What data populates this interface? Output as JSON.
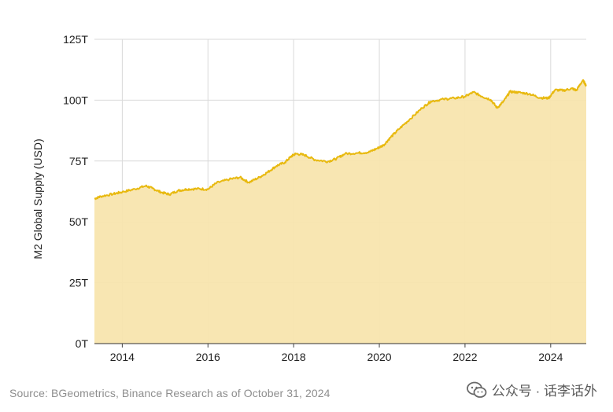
{
  "chart_data": {
    "type": "area",
    "ylabel": "M2 Global Supply (USD)",
    "xlabel": "",
    "xlim": [
      2013.35,
      2024.83
    ],
    "ylim": [
      0,
      125
    ],
    "x_ticks": [
      2014,
      2016,
      2018,
      2020,
      2022,
      2024
    ],
    "x_tick_labels": [
      "2014",
      "2016",
      "2018",
      "2020",
      "2022",
      "2024"
    ],
    "y_ticks": [
      0,
      25,
      50,
      75,
      100,
      125
    ],
    "y_tick_labels": [
      "0T",
      "25T",
      "50T",
      "75T",
      "100T",
      "125T"
    ],
    "grid": true,
    "line_color": "#e8b90f",
    "fill_color": "#f8e5ae",
    "series": [
      {
        "x": [
          2013.35,
          2013.5,
          2013.8,
          2014.0,
          2014.3,
          2014.55,
          2014.7,
          2014.9,
          2015.1,
          2015.3,
          2015.5,
          2015.75,
          2016.0,
          2016.2,
          2016.5,
          2016.75,
          2016.95,
          2017.2,
          2017.4,
          2017.6,
          2017.8,
          2017.95,
          2018.05,
          2018.25,
          2018.5,
          2018.8,
          2019.0,
          2019.2,
          2019.5,
          2019.75,
          2019.95,
          2020.1,
          2020.25,
          2020.45,
          2020.7,
          2021.0,
          2021.2,
          2021.5,
          2021.75,
          2022.0,
          2022.2,
          2022.4,
          2022.6,
          2022.75,
          2022.9,
          2023.05,
          2023.25,
          2023.5,
          2023.75,
          2023.95,
          2024.1,
          2024.3,
          2024.5,
          2024.6,
          2024.75,
          2024.83
        ],
        "values": [
          59.5,
          60.5,
          61.5,
          62.3,
          63.5,
          64.8,
          63.8,
          62.2,
          61.3,
          62.8,
          63.4,
          63.6,
          63.4,
          66.0,
          67.5,
          68.3,
          66.2,
          68.3,
          70.5,
          73.0,
          74.5,
          77.0,
          78.0,
          77.5,
          75.5,
          74.8,
          76.0,
          78.0,
          78.3,
          78.6,
          80.2,
          81.5,
          84.5,
          88.0,
          92.0,
          96.8,
          99.5,
          100.4,
          100.8,
          101.5,
          103.3,
          101.5,
          100.2,
          96.8,
          99.5,
          103.5,
          103.2,
          102.6,
          101.0,
          100.8,
          104.2,
          104.0,
          104.8,
          104.0,
          108.2,
          106.0
        ]
      }
    ]
  },
  "footer": {
    "source": "Source: BGeometrics, Binance Research as of October 31, 2024",
    "watermark": "公众号 · 话李话外",
    "watermark_icon": "wechat-icon"
  }
}
